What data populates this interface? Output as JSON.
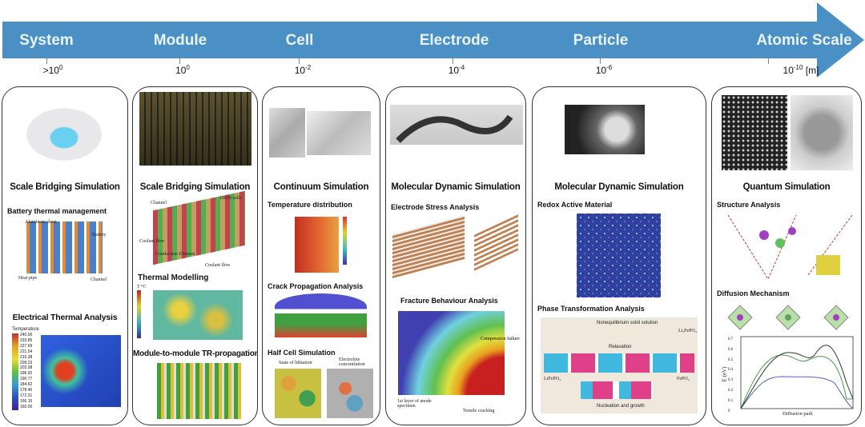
{
  "arrow": {
    "color": "#4a90c4",
    "unit": "[m]"
  },
  "stages": [
    {
      "label": "System",
      "scale_base": ">10",
      "scale_exp": "0"
    },
    {
      "label": "Module",
      "scale_base": "10",
      "scale_exp": "0"
    },
    {
      "label": "Cell",
      "scale_base": "10",
      "scale_exp": "-2"
    },
    {
      "label": "Electrode",
      "scale_base": "10",
      "scale_exp": "-4"
    },
    {
      "label": "Particle",
      "scale_base": "10",
      "scale_exp": "-6"
    },
    {
      "label": "Atomic Scale",
      "scale_base": "10",
      "scale_exp": "-10"
    }
  ],
  "panels": {
    "system": {
      "title": "Scale Bridging Simulation",
      "sub1": "Battery thermal management",
      "sub2": "Electrical Thermal Analysis",
      "labels": {
        "aluminum": "Aluminum sheet",
        "battery": "Battery",
        "heat_pipe": "Heat pipe",
        "channel": "Channel"
      },
      "legend_title": "Temperature",
      "legend_values": [
        "240.00",
        "233.85",
        "227.69",
        "221.54",
        "215.38",
        "209.23",
        "203.08",
        "196.92",
        "190.77",
        "184.62",
        "178.46",
        "172.31",
        "166.15",
        "160.00"
      ]
    },
    "module": {
      "title": "Scale Bridging Simulation",
      "sub1": "Thermal Modelling",
      "sub2": "Module-to-module TR-propagation",
      "labels": {
        "channel": "Channel",
        "cells": "18650 cells",
        "coolant1": "Coolant flow",
        "conduction": "Conduction Element",
        "coolant2": "Coolant flow",
        "unit": "T °C"
      }
    },
    "cell": {
      "title": "Continuum Simulation",
      "sub1": "Temperature distribution",
      "sub2": "Crack Propagation Analysis",
      "sub3": "Half Cell Simulation",
      "labels": {
        "lithiation": "State of lithiation",
        "electrolyte": "Electrolyte concentration"
      }
    },
    "electrode": {
      "title": "Molecular Dynamic Simulation",
      "sub1": "Electrode Stress Analysis",
      "sub2": "Fracture Behaviour Analysis",
      "labels": {
        "compression": "Compression failure",
        "layer": "1st layer of anode specimen",
        "tensile": "Tensile cracking"
      }
    },
    "particle": {
      "title": "Molecular Dynamic Simulation",
      "sub1": "Redox Active Material",
      "sub2": "Phase Transformation Analysis",
      "labels": {
        "noneq": "Nonequilibrium solid solution",
        "relax": "Relaxation",
        "nucleation": "Nucleation and growth",
        "lfp": "LiFePO₄",
        "fp": "FePO₄",
        "lxfp": "LiₓFePO₄"
      }
    },
    "atomic": {
      "title": "Quantum Simulation",
      "sub1": "Structure Analysis",
      "sub2": "Diffusion Mechanism",
      "plot": {
        "ylabel": "E (eV)",
        "xlabel": "Diffusion path",
        "yticks": [
          "0.7",
          "0.6",
          "0.5",
          "0.4",
          "0.3",
          "0.2",
          "0.1",
          "0"
        ]
      }
    }
  }
}
